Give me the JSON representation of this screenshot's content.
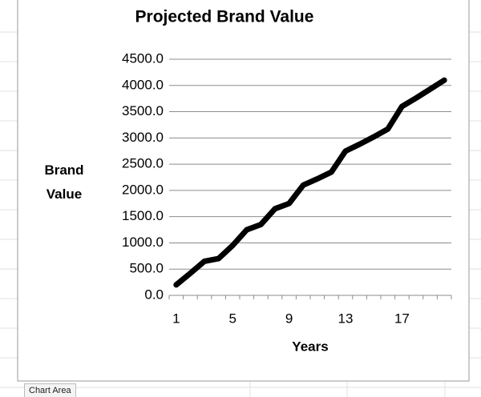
{
  "chart_data": {
    "type": "line",
    "title": "Projected Brand Value",
    "xlabel": "Years",
    "ylabel": "Brand Value",
    "categories": [
      1,
      null,
      null,
      null,
      5,
      null,
      null,
      null,
      9,
      null,
      null,
      null,
      13,
      null,
      null,
      null,
      17,
      null,
      null,
      null
    ],
    "series": [
      {
        "name": "Brand Value",
        "color": "#000000",
        "values": [
          200,
          420,
          650,
          700,
          950,
          1250,
          1350,
          1650,
          1750,
          2100,
          2220,
          2350,
          2750,
          2880,
          3020,
          3170,
          3600,
          3760,
          3930,
          4100
        ]
      }
    ],
    "ylim": [
      0,
      4500
    ],
    "yticks": [
      {
        "value": 0,
        "label": "0.0"
      },
      {
        "value": 500,
        "label": "500.0"
      },
      {
        "value": 1000,
        "label": "1000.0"
      },
      {
        "value": 1500,
        "label": "1500.0"
      },
      {
        "value": 2000,
        "label": "2000.0"
      },
      {
        "value": 2500,
        "label": "2500.0"
      },
      {
        "value": 3000,
        "label": "3000.0"
      },
      {
        "value": 3500,
        "label": "3500.0"
      },
      {
        "value": 4000,
        "label": "4000.0"
      },
      {
        "value": 4500,
        "label": "4500.0"
      }
    ],
    "grid": true
  },
  "status": {
    "tooltip": "Chart Area"
  }
}
